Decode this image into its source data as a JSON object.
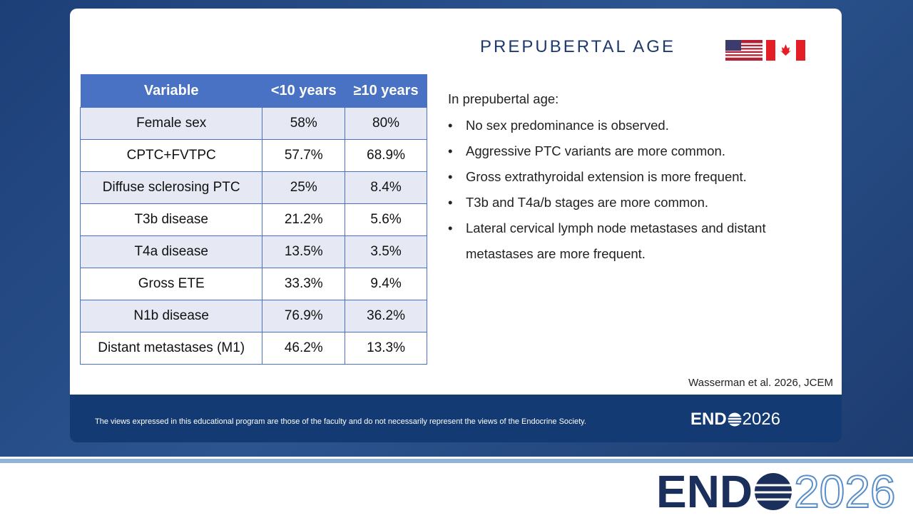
{
  "slide": {
    "title": "PREPUBERTAL AGE",
    "table": {
      "header": [
        "Variable",
        "<10 years",
        "≥10 years"
      ],
      "rows": [
        [
          "Female sex",
          "58%",
          "80%"
        ],
        [
          "CPTC+FVTPC",
          "57.7%",
          "68.9%"
        ],
        [
          "Diffuse sclerosing PTC",
          "25%",
          "8.4%"
        ],
        [
          "T3b disease",
          "21.2%",
          "5.6%"
        ],
        [
          "T4a disease",
          "13.5%",
          "3.5%"
        ],
        [
          "Gross ETE",
          "33.3%",
          "9.4%"
        ],
        [
          "N1b disease",
          "76.9%",
          "36.2%"
        ],
        [
          "Distant metastases (M1)",
          "46.2%",
          "13.3%"
        ]
      ]
    },
    "intro": "In prepubertal age:",
    "bullets": [
      "No sex predominance is observed.",
      "Aggressive PTC variants are more common.",
      "Gross extrathyroidal extension is more frequent.",
      "T3b and T4a/b stages are more common.",
      "Lateral cervical lymph node metastases and distant metastases are more frequent."
    ],
    "citation": "Wasserman et al. 2026, JCEM"
  },
  "footer": {
    "disclaimer": "The views expressed in this educational program are those of the faculty and do not necessarily represent the views of the Endocrine Society.",
    "logo": {
      "left": "END",
      "right": "2026"
    }
  },
  "bottom_logo": {
    "left": "END",
    "right": "2026"
  }
}
